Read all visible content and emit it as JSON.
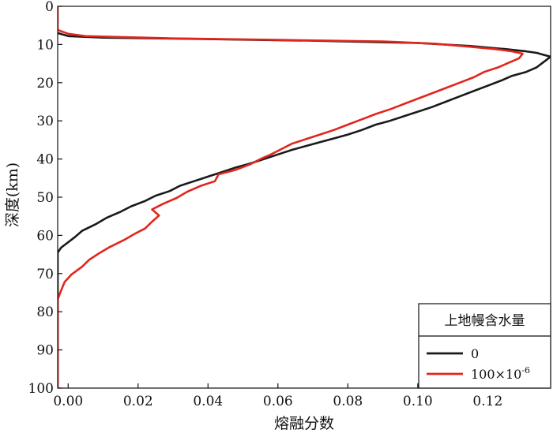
{
  "chart_data": {
    "type": "line",
    "title": "",
    "xlabel": "熔融分数",
    "ylabel": "深度(km)",
    "xlim": [
      -0.003,
      0.138
    ],
    "ylim": [
      100,
      0
    ],
    "y_inverted": true,
    "grid": false,
    "x_ticks": [
      0.0,
      0.02,
      0.04,
      0.06,
      0.08,
      0.1,
      0.12
    ],
    "x_tick_labels": [
      "0.00",
      "0.02",
      "0.04",
      "0.06",
      "0.08",
      "0.10",
      "0.12"
    ],
    "y_ticks": [
      0,
      10,
      20,
      30,
      40,
      50,
      60,
      70,
      80,
      90,
      100
    ],
    "y_tick_labels": [
      "0",
      "10",
      "20",
      "30",
      "40",
      "50",
      "60",
      "70",
      "80",
      "90",
      "100"
    ],
    "legend": {
      "title": "上地幔含水量",
      "placement": "bottom-right",
      "entries": [
        {
          "label": "0",
          "color": "#1a1a1a"
        },
        {
          "label": "100×10",
          "superscript": "-6",
          "color": "#e0261d"
        }
      ]
    },
    "series": [
      {
        "color": "#1a1a1a",
        "points": [
          [
            -0.003,
            7.0
          ],
          [
            0.0,
            7.8
          ],
          [
            0.01,
            8.2
          ],
          [
            0.04,
            8.6
          ],
          [
            0.07,
            9.0
          ],
          [
            0.1,
            9.6
          ],
          [
            0.115,
            10.4
          ],
          [
            0.125,
            11.2
          ],
          [
            0.131,
            11.8
          ],
          [
            0.134,
            12.2
          ],
          [
            0.136,
            12.7
          ],
          [
            0.138,
            13.2
          ],
          [
            0.136,
            14.6
          ],
          [
            0.134,
            16.0
          ],
          [
            0.131,
            17.2
          ],
          [
            0.127,
            18.2
          ],
          [
            0.124,
            19.4
          ],
          [
            0.12,
            20.8
          ],
          [
            0.116,
            22.2
          ],
          [
            0.112,
            23.6
          ],
          [
            0.108,
            25.0
          ],
          [
            0.104,
            26.4
          ],
          [
            0.1,
            27.6
          ],
          [
            0.096,
            28.8
          ],
          [
            0.092,
            30.0
          ],
          [
            0.088,
            31.0
          ],
          [
            0.084,
            32.4
          ],
          [
            0.08,
            33.6
          ],
          [
            0.076,
            34.6
          ],
          [
            0.072,
            35.6
          ],
          [
            0.068,
            36.6
          ],
          [
            0.064,
            37.6
          ],
          [
            0.06,
            38.8
          ],
          [
            0.056,
            40.0
          ],
          [
            0.052,
            41.2
          ],
          [
            0.048,
            42.2
          ],
          [
            0.044,
            43.4
          ],
          [
            0.04,
            44.6
          ],
          [
            0.036,
            45.8
          ],
          [
            0.032,
            47.0
          ],
          [
            0.029,
            48.4
          ],
          [
            0.025,
            49.6
          ],
          [
            0.022,
            51.0
          ],
          [
            0.018,
            52.4
          ],
          [
            0.015,
            53.8
          ],
          [
            0.011,
            55.4
          ],
          [
            0.008,
            57.0
          ],
          [
            0.004,
            58.8
          ],
          [
            0.002,
            60.4
          ],
          [
            0.0,
            61.8
          ],
          [
            -0.002,
            63.2
          ],
          [
            -0.003,
            64.5
          ],
          [
            -0.003,
            100.0
          ]
        ]
      },
      {
        "color": "#e0261d",
        "points": [
          [
            -0.003,
            0.0
          ],
          [
            -0.003,
            6.2
          ],
          [
            0.0,
            7.2
          ],
          [
            0.005,
            7.8
          ],
          [
            0.03,
            8.4
          ],
          [
            0.06,
            8.8
          ],
          [
            0.09,
            9.2
          ],
          [
            0.105,
            9.8
          ],
          [
            0.115,
            10.6
          ],
          [
            0.122,
            11.2
          ],
          [
            0.127,
            11.8
          ],
          [
            0.13,
            12.4
          ],
          [
            0.129,
            13.6
          ],
          [
            0.126,
            14.8
          ],
          [
            0.123,
            16.0
          ],
          [
            0.119,
            17.2
          ],
          [
            0.116,
            18.6
          ],
          [
            0.112,
            20.0
          ],
          [
            0.108,
            21.4
          ],
          [
            0.104,
            22.8
          ],
          [
            0.1,
            24.2
          ],
          [
            0.096,
            25.6
          ],
          [
            0.092,
            27.0
          ],
          [
            0.088,
            28.2
          ],
          [
            0.084,
            29.6
          ],
          [
            0.08,
            31.0
          ],
          [
            0.076,
            32.4
          ],
          [
            0.072,
            33.6
          ],
          [
            0.068,
            34.8
          ],
          [
            0.064,
            36.0
          ],
          [
            0.061,
            37.4
          ],
          [
            0.058,
            38.8
          ],
          [
            0.055,
            40.0
          ],
          [
            0.052,
            41.4
          ],
          [
            0.048,
            42.8
          ],
          [
            0.043,
            44.0
          ],
          [
            0.042,
            45.8
          ],
          [
            0.038,
            47.0
          ],
          [
            0.034,
            48.6
          ],
          [
            0.031,
            50.2
          ],
          [
            0.027,
            51.8
          ],
          [
            0.024,
            53.2
          ],
          [
            0.026,
            54.8
          ],
          [
            0.024,
            56.4
          ],
          [
            0.022,
            58.2
          ],
          [
            0.019,
            59.6
          ],
          [
            0.016,
            61.2
          ],
          [
            0.012,
            63.0
          ],
          [
            0.009,
            64.6
          ],
          [
            0.006,
            66.4
          ],
          [
            0.004,
            68.2
          ],
          [
            0.001,
            70.2
          ],
          [
            -0.001,
            72.2
          ],
          [
            -0.002,
            74.4
          ],
          [
            -0.003,
            76.8
          ],
          [
            -0.003,
            79.0
          ],
          [
            -0.003,
            100.0
          ]
        ]
      }
    ]
  }
}
